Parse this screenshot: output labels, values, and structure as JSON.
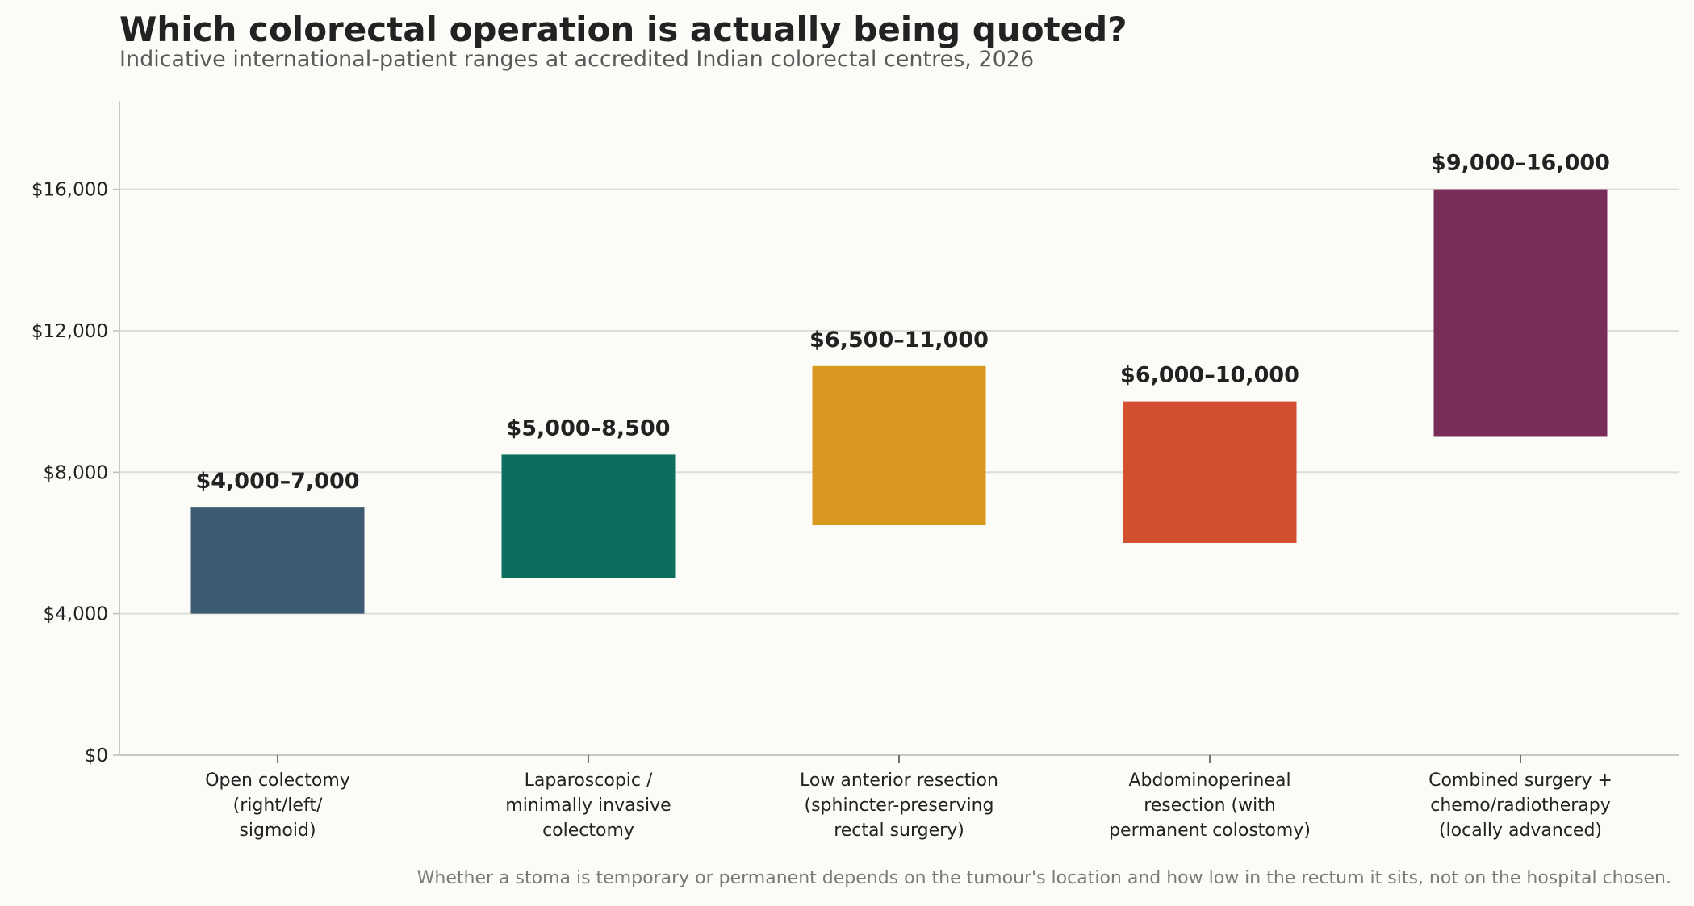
{
  "chart_data": {
    "type": "bar",
    "title": "Which colorectal operation is actually being quoted?",
    "subtitle": "Indicative international-patient ranges at accredited Indian colorectal centres, 2026",
    "footnote": "Whether a stoma is temporary or permanent depends on the tumour's location and how low in the rectum it sits, not on the hospital chosen.",
    "xlabel": "",
    "ylabel": "",
    "ylim": [
      0,
      18500
    ],
    "yticks": [
      0,
      4000,
      8000,
      12000,
      16000
    ],
    "ytick_labels": [
      "$0",
      "$4,000",
      "$8,000",
      "$12,000",
      "$16,000"
    ],
    "grid": "horizontal",
    "categories": [
      [
        "Open colectomy",
        "(right/left/",
        "sigmoid)"
      ],
      [
        "Laparoscopic /",
        "minimally invasive",
        "colectomy"
      ],
      [
        "Low anterior resection",
        "(sphincter-preserving",
        "rectal surgery)"
      ],
      [
        "Abdominoperineal",
        "resection (with",
        "permanent colostomy)"
      ],
      [
        "Combined surgery +",
        "chemo/radiotherapy",
        "(locally advanced)"
      ]
    ],
    "ranges": [
      {
        "low": 4000,
        "high": 7000,
        "label": "$4,000–7,000",
        "color": "#3d5a73"
      },
      {
        "low": 5000,
        "high": 8500,
        "label": "$5,000–8,500",
        "color": "#0e6e5e"
      },
      {
        "low": 6500,
        "high": 11000,
        "label": "$6,500–11,000",
        "color": "#d8971e"
      },
      {
        "low": 6000,
        "high": 10000,
        "label": "$6,000–10,000",
        "color": "#d2502f"
      },
      {
        "low": 9000,
        "high": 16000,
        "label": "$9,000–16,000",
        "color": "#7a2d59"
      }
    ]
  }
}
